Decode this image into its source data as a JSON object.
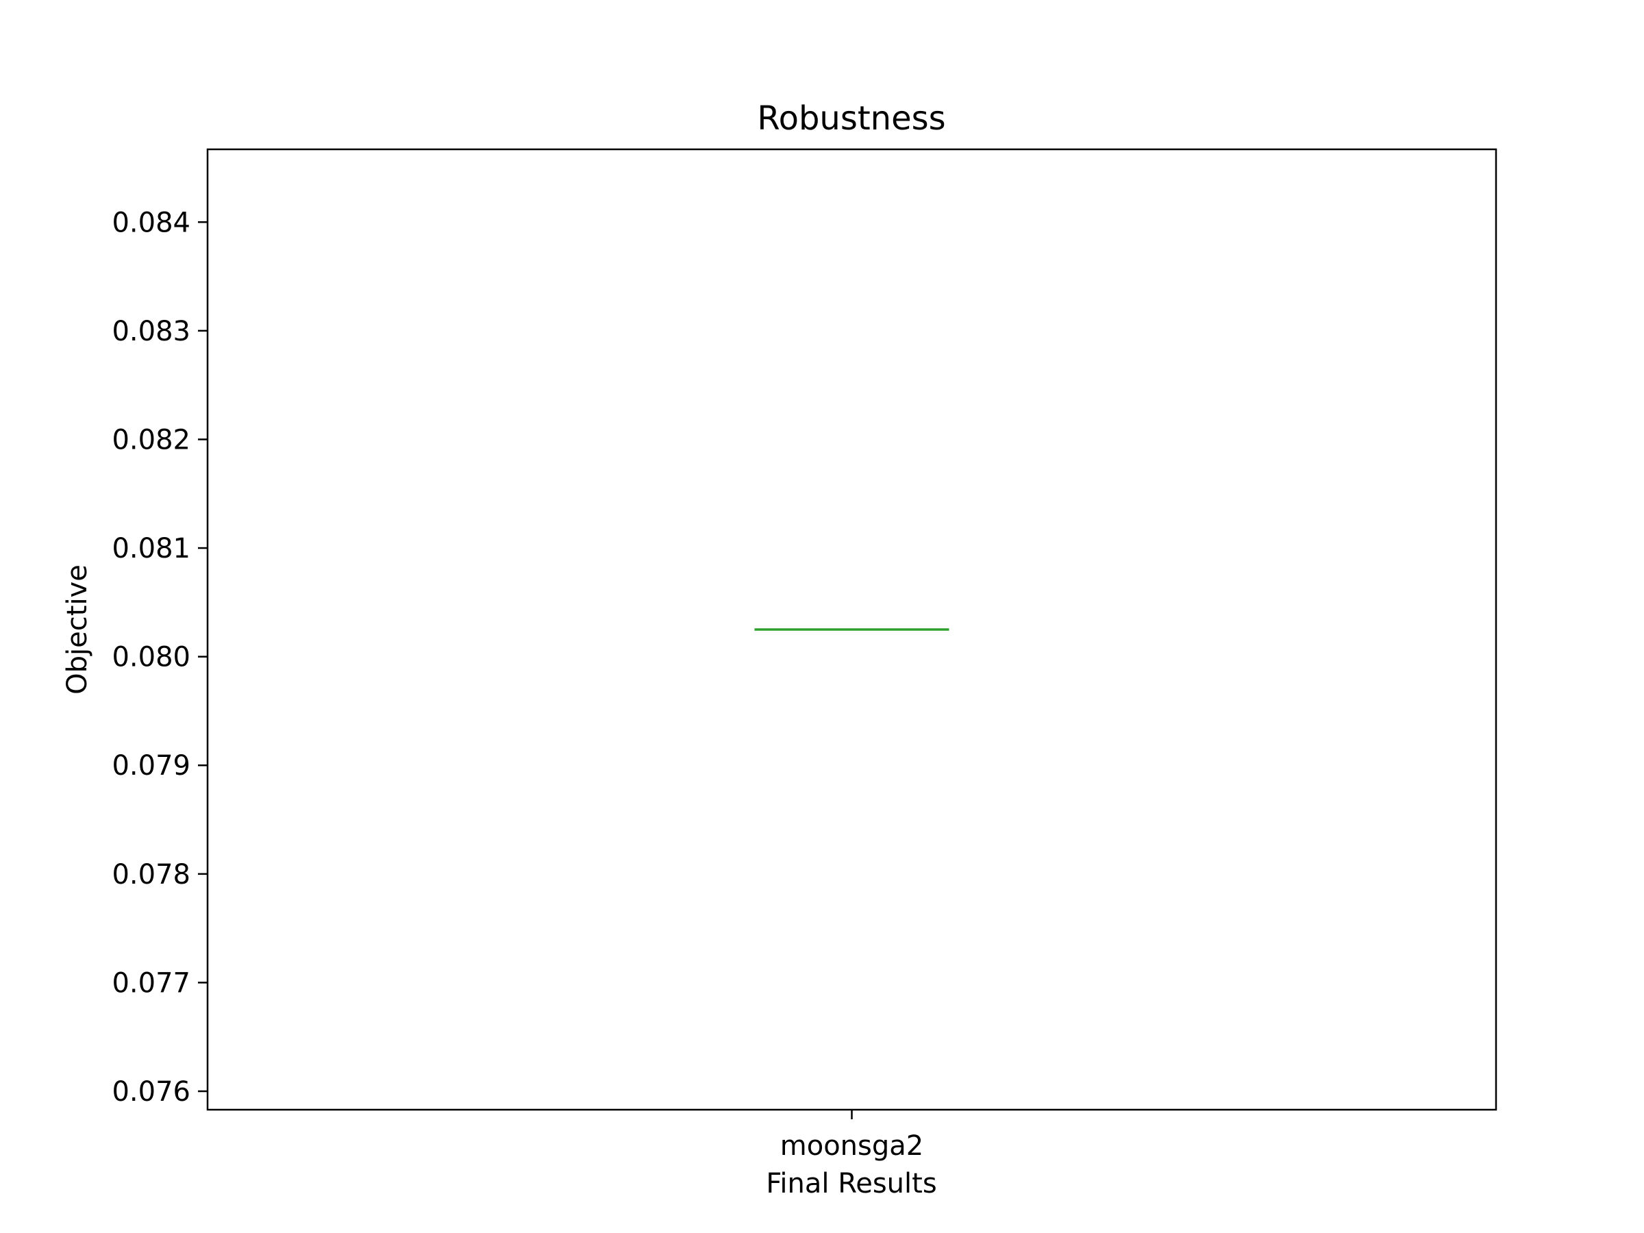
{
  "chart_data": {
    "type": "box",
    "title": "Robustness",
    "xlabel": "Final Results",
    "ylabel": "Objective",
    "categories": [
      "moonsga2"
    ],
    "series": [
      {
        "category": "moonsga2",
        "min": 0.08025,
        "q1": 0.08025,
        "median": 0.08025,
        "q3": 0.08025,
        "max": 0.08025
      }
    ],
    "ylim": [
      0.07583,
      0.08467
    ],
    "yticks": [
      0.076,
      0.077,
      0.078,
      0.079,
      0.08,
      0.081,
      0.082,
      0.083,
      0.084
    ],
    "ytick_labels": [
      "0.076",
      "0.077",
      "0.078",
      "0.079",
      "0.080",
      "0.081",
      "0.082",
      "0.083",
      "0.084"
    ],
    "grid": false,
    "colors": {
      "median": "#2ca02c",
      "box": "#000000",
      "axes": "#000000"
    }
  }
}
